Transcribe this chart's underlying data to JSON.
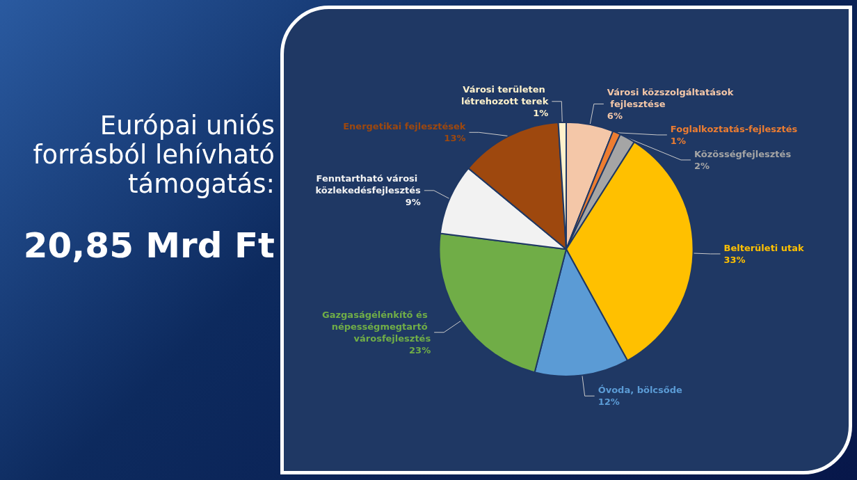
{
  "chart_data": {
    "type": "pie",
    "title": "Európai uniós forrásból lehívható támogatás:",
    "subtitle": "20,85 Mrd Ft",
    "categories": [
      "Városi közszolgáltatások fejlesztése",
      "Foglalkoztatás-fejlesztés",
      "Közösségfejlesztés",
      "Belterületi utak",
      "Óvoda, bölcsőde",
      "Gazgaságélénkítő és népességmegtartó városfejlesztés",
      "Fenntartható városi közlekedésfejlesztés",
      "Energetikai fejlesztések",
      "Városi területen létrehozott terek"
    ],
    "values": [
      6,
      1,
      2,
      33,
      12,
      23,
      9,
      13,
      1
    ],
    "colors": [
      "#f4c7a8",
      "#ed7d31",
      "#a5a5a5",
      "#ffc000",
      "#5b9bd5",
      "#70ad47",
      "#f2f2f2",
      "#9e480e",
      "#fff2cc"
    ],
    "value_labels": [
      "6%",
      "1%",
      "2%",
      "33%",
      "12%",
      "23%",
      "9%",
      "13%",
      "1%"
    ],
    "legend": false
  }
}
